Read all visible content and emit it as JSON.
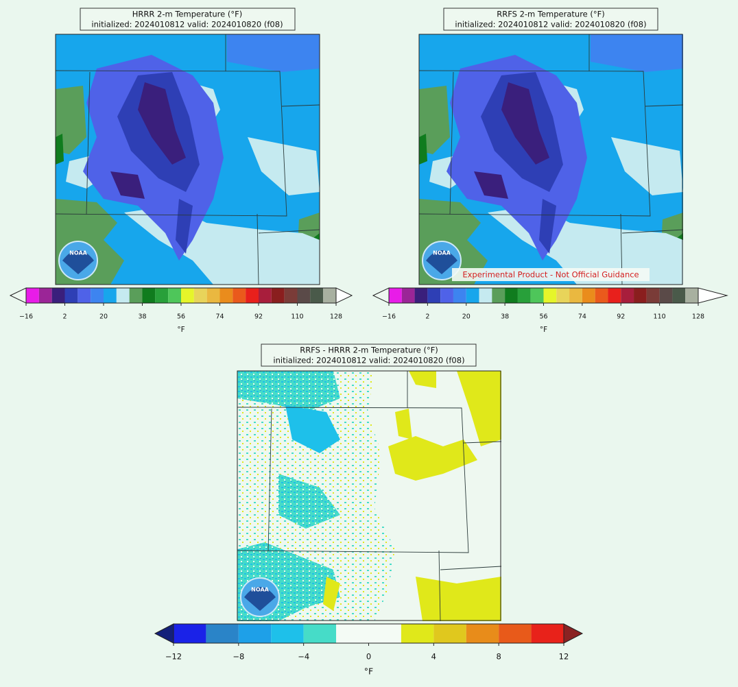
{
  "panels": [
    {
      "title": "HRRR 2-m Temperature (°F)",
      "subtitle": "initialized: 2024010812 valid: 2024010820 (f08)",
      "colorbar": {
        "label": "°F",
        "bounds": [
          -16,
          -10,
          -4,
          2,
          8,
          14,
          20,
          26,
          32,
          38,
          44,
          50,
          56,
          62,
          68,
          74,
          80,
          86,
          92,
          98,
          104,
          110,
          116,
          122,
          128
        ],
        "colors": [
          "#e81ce8",
          "#9b2597",
          "#3a1f7c",
          "#2e3fb5",
          "#4f62e8",
          "#3d84f0",
          "#17a6ec",
          "#c5eaf0",
          "#5a9e5a",
          "#107c1e",
          "#28a03a",
          "#4ec65a",
          "#e6f52a",
          "#e8d45a",
          "#eab840",
          "#ea8c1c",
          "#ea5a1c",
          "#e8201c",
          "#a81e3c",
          "#8a1e1e",
          "#7a3c38",
          "#5a4a48",
          "#4a5a4a",
          "#a8b0a0"
        ],
        "extend_colors": [
          "#eef8f0",
          "#ffffff"
        ],
        "ticks": [
          {
            "value": -16,
            "label": "−16"
          },
          2,
          20,
          38,
          56,
          74,
          92,
          110,
          128
        ]
      }
    },
    {
      "title": "RRFS 2-m Temperature (°F)",
      "subtitle": "initialized: 2024010812 valid: 2024010820 (f08)",
      "watermark": "Experimental Product - Not Official Guidance",
      "colorbar": {
        "label": "°F",
        "bounds": [
          -16,
          -10,
          -4,
          2,
          8,
          14,
          20,
          26,
          32,
          38,
          44,
          50,
          56,
          62,
          68,
          74,
          80,
          86,
          92,
          98,
          104,
          110,
          116,
          122,
          128
        ],
        "colors": [
          "#e81ce8",
          "#9b2597",
          "#3a1f7c",
          "#2e3fb5",
          "#4f62e8",
          "#3d84f0",
          "#17a6ec",
          "#c5eaf0",
          "#5a9e5a",
          "#107c1e",
          "#28a03a",
          "#4ec65a",
          "#e6f52a",
          "#e8d45a",
          "#eab840",
          "#ea8c1c",
          "#ea5a1c",
          "#e8201c",
          "#a81e3c",
          "#8a1e1e",
          "#7a3c38",
          "#5a4a48",
          "#4a5a4a",
          "#a8b0a0"
        ],
        "extend_colors": [
          "#eef8f0",
          "#ffffff"
        ],
        "ticks": [
          {
            "value": -16,
            "label": "−16"
          },
          2,
          20,
          38,
          56,
          74,
          92,
          110,
          128
        ]
      }
    },
    {
      "title": "RRFS - HRRR 2-m Temperature (°F)",
      "subtitle": "initialized: 2024010812 valid: 2024010820 (f08)",
      "colorbar": {
        "label": "°F",
        "bounds": [
          -12,
          -10,
          -8,
          -6,
          -4,
          -2,
          2,
          4,
          6,
          8,
          10,
          12
        ],
        "colors": [
          "#1a22e8",
          "#2a84c8",
          "#1ea0e8",
          "#1ec0ea",
          "#46dcc8",
          "#f4fbf5",
          "#e0e81a",
          "#e0c81e",
          "#e88c1a",
          "#e85a1a",
          "#e8221a"
        ],
        "extend_colors": [
          "#14207a",
          "#8a2222"
        ],
        "ticks": [
          {
            "value": -12,
            "label": "−12"
          },
          {
            "value": -8,
            "label": "−8"
          },
          {
            "value": -4,
            "label": "−4"
          },
          0,
          4,
          8,
          12
        ]
      }
    }
  ],
  "logo_text": "NOAA"
}
